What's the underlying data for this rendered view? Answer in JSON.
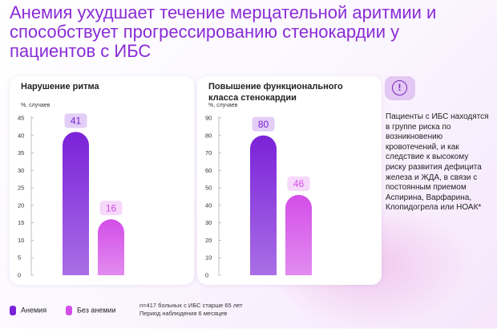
{
  "title": "Анемия ухудшает течение мерцательной аритмии и способствует прогрессированию стенокардии у пациентов с ИБС",
  "chart_data": [
    {
      "type": "bar",
      "title": "Нарушение ритма",
      "ylabel": "%, случаев",
      "categories": [
        "Анемия",
        "Без анемии"
      ],
      "values": [
        41,
        16
      ],
      "ylim": [
        0,
        45
      ],
      "yticks": [
        0,
        5,
        10,
        15,
        20,
        25,
        30,
        35,
        40,
        45
      ],
      "data_labels": [
        "41",
        "16"
      ],
      "colors": [
        "#7a22d8",
        "#d34ee8"
      ]
    },
    {
      "type": "bar",
      "title": "Повышение функционального класса стенокардии",
      "ylabel": "%, случаев",
      "categories": [
        "Анемия",
        "Без анемии"
      ],
      "values": [
        80,
        46
      ],
      "ylim": [
        0,
        90
      ],
      "yticks": [
        0,
        10,
        20,
        30,
        40,
        50,
        60,
        70,
        80,
        90
      ],
      "data_labels": [
        "80",
        "46"
      ],
      "colors": [
        "#7a22d8",
        "#d34ee8"
      ]
    }
  ],
  "legend": [
    {
      "label": "Анемия",
      "color": "#7a22d8"
    },
    {
      "label": "Без анемии",
      "color": "#d34ee8"
    }
  ],
  "footnote": {
    "line1": "n=417 больных с ИБС старше 65 лет",
    "line2": "Период наблюдения 6 месяцев"
  },
  "info": {
    "icon": "exclamation-circle-icon",
    "icon_glyph": "!",
    "text": "Пациенты с ИБС находятся в группе риска по возникновению кровотечений, и как следствие к высокому риску развития дефицита железа и ЖДА, в связи с постоянным приемом Аспирина, Варфарина, Клопидогрела или НОАК*"
  }
}
